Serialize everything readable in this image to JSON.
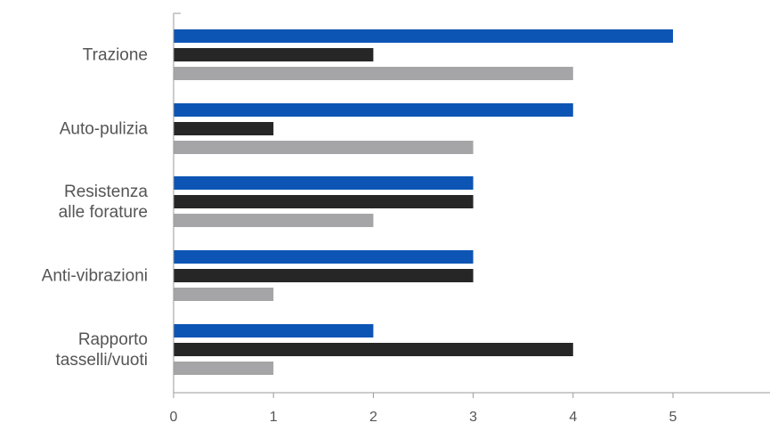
{
  "chart_data": {
    "type": "bar",
    "orientation": "horizontal",
    "categories": [
      [
        "Trazione"
      ],
      [
        "Auto-pulizia"
      ],
      [
        "Resistenza",
        "alle forature"
      ],
      [
        "Anti-vibrazioni"
      ],
      [
        "Rapporto",
        "tasselli/vuoti"
      ]
    ],
    "series": [
      {
        "color": "#0d55b5",
        "values": [
          5,
          4,
          3,
          3,
          2
        ]
      },
      {
        "color": "#262626",
        "values": [
          2,
          1,
          3,
          3,
          4
        ]
      },
      {
        "color": "#a5a5a7",
        "values": [
          4,
          3,
          2,
          1,
          1
        ]
      }
    ],
    "x_ticks": [
      "0",
      "1",
      "2",
      "3",
      "4",
      "5"
    ],
    "xlim": [
      0,
      5.9
    ],
    "grid": false,
    "legend": "none"
  }
}
